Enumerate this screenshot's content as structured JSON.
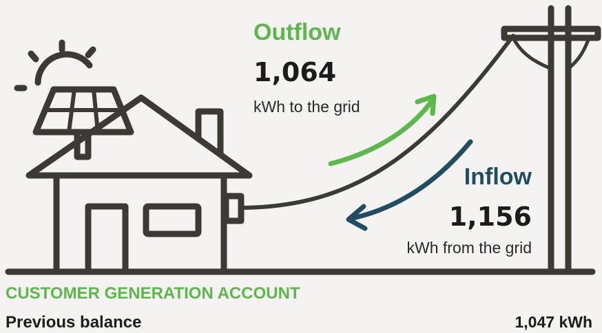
{
  "outflow": {
    "title": "Outflow",
    "value": "1,064",
    "unit": "kWh to the grid"
  },
  "inflow": {
    "title": "Inflow",
    "value": "1,156",
    "unit": "kWh from the grid"
  },
  "account": {
    "title": "CUSTOMER GENERATION ACCOUNT",
    "rows": [
      {
        "label": "Previous balance",
        "value": "1,047 kWh"
      }
    ]
  }
}
